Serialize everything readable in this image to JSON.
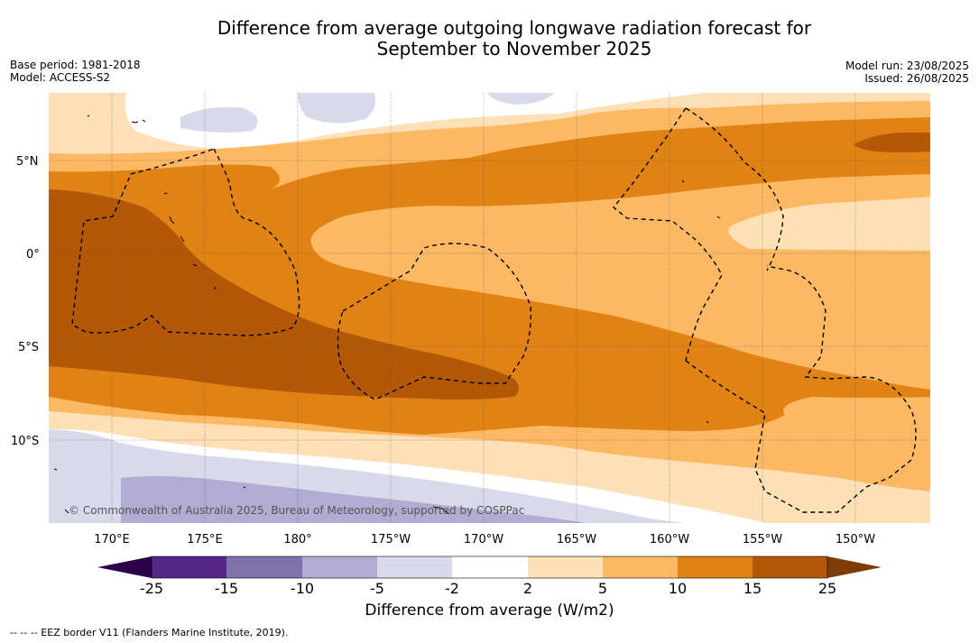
{
  "title_line1": "Difference from average outgoing longwave radiation forecast for",
  "title_line2": "September to November 2025",
  "meta_left": {
    "base_period": "Base period: 1981-2018",
    "model": "Model: ACCESS-S2"
  },
  "meta_right": {
    "model_run": "Model run: 23/08/2025",
    "issued": "Issued: 26/08/2025"
  },
  "lat_labels": [
    "5°N",
    "0°",
    "5°S",
    "10°S"
  ],
  "lon_labels": [
    "170°E",
    "175°E",
    "180°",
    "175°W",
    "170°W",
    "165°W",
    "160°W",
    "155°W",
    "150°W"
  ],
  "copyright": "© Commonwealth of Australia 2025, Bureau of Meteorology, supported by COSPPac",
  "colorbar": {
    "ticks": [
      "-25",
      "-15",
      "-10",
      "-5",
      "-2",
      "2",
      "5",
      "10",
      "15",
      "25"
    ],
    "colors": [
      "#2d004b",
      "#542788",
      "#8073ac",
      "#b2abd2",
      "#d8daeb",
      "#ffffff",
      "#fee0b6",
      "#fdb863",
      "#e08214",
      "#b35806",
      "#7f3b08"
    ],
    "title": "Difference from average (W/m2)"
  },
  "legend_note": "-- -- -- EEZ border V11 (Flanders Marine Institute, 2019)."
}
